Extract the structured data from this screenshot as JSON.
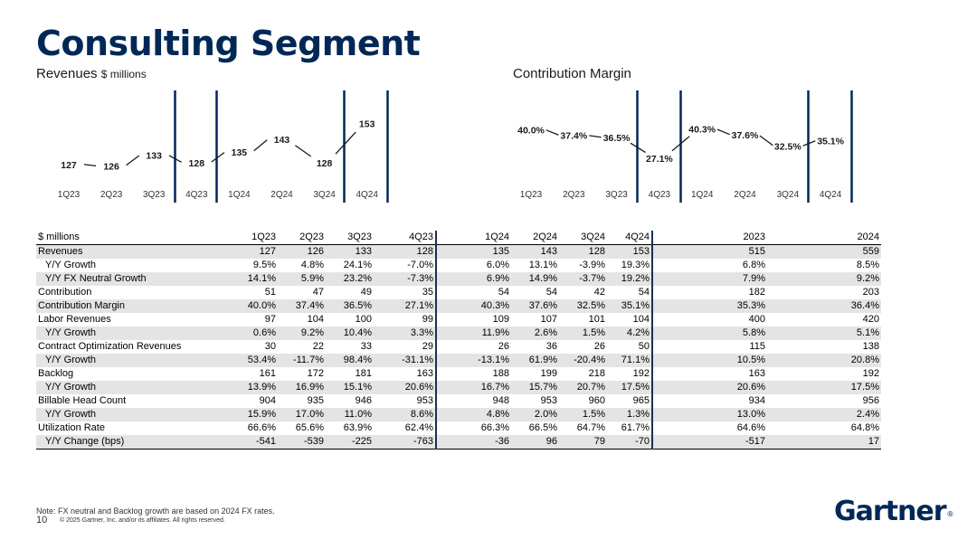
{
  "page": {
    "title": "Consulting Segment",
    "revenues_label": "Revenues",
    "revenues_unit": "$ millions",
    "margin_label": "Contribution Margin",
    "note": "Note: FX neutral and Backlog growth are based on 2024 FX rates.",
    "page_number": "10",
    "copyright": "© 2025 Gartner, Inc. and/or its affiliates. All rights reserved.",
    "logo_text": "Gartner",
    "logo_mark": "®"
  },
  "chart_data": [
    {
      "type": "line",
      "title": "Revenues $ millions",
      "categories": [
        "1Q23",
        "2Q23",
        "3Q23",
        "4Q23",
        "1Q24",
        "2Q24",
        "3Q24",
        "4Q24"
      ],
      "values": [
        127,
        126,
        133,
        128,
        135,
        143,
        128,
        153
      ],
      "labels": [
        "127",
        "126",
        "133",
        "128",
        "135",
        "143",
        "128",
        "153"
      ],
      "ylim": [
        120,
        160
      ],
      "dividers_after": [
        "3Q23",
        "4Q23",
        "3Q24",
        "4Q24"
      ],
      "color": "#002856"
    },
    {
      "type": "line",
      "title": "Contribution Margin",
      "categories": [
        "1Q23",
        "2Q23",
        "3Q23",
        "4Q23",
        "1Q24",
        "2Q24",
        "3Q24",
        "4Q24"
      ],
      "values": [
        40.0,
        37.4,
        36.5,
        27.1,
        40.3,
        37.6,
        32.5,
        35.1
      ],
      "labels": [
        "40.0%",
        "37.4%",
        "36.5%",
        "27.1%",
        "40.3%",
        "37.6%",
        "32.5%",
        "35.1%"
      ],
      "ylim": [
        25,
        43
      ],
      "dividers_after": [
        "3Q23",
        "4Q23",
        "3Q24",
        "4Q24"
      ],
      "color": "#002856"
    }
  ],
  "table": {
    "header": [
      "$ millions",
      "1Q23",
      "2Q23",
      "3Q23",
      "4Q23",
      "1Q24",
      "2Q24",
      "3Q24",
      "4Q24",
      "2023",
      "2024"
    ],
    "rows": [
      {
        "label": "Revenues",
        "indent": false,
        "values": [
          "127",
          "126",
          "133",
          "128",
          "135",
          "143",
          "128",
          "153",
          "515",
          "559"
        ]
      },
      {
        "label": "Y/Y Growth",
        "indent": true,
        "values": [
          "9.5%",
          "4.8%",
          "24.1%",
          "-7.0%",
          "6.0%",
          "13.1%",
          "-3.9%",
          "19.3%",
          "6.8%",
          "8.5%"
        ]
      },
      {
        "label": "Y/Y FX Neutral Growth",
        "indent": true,
        "values": [
          "14.1%",
          "5.9%",
          "23.2%",
          "-7.3%",
          "6.9%",
          "14.9%",
          "-3.7%",
          "19.2%",
          "7.9%",
          "9.2%"
        ]
      },
      {
        "label": "Contribution",
        "indent": false,
        "values": [
          "51",
          "47",
          "49",
          "35",
          "54",
          "54",
          "42",
          "54",
          "182",
          "203"
        ]
      },
      {
        "label": "Contribution Margin",
        "indent": false,
        "values": [
          "40.0%",
          "37.4%",
          "36.5%",
          "27.1%",
          "40.3%",
          "37.6%",
          "32.5%",
          "35.1%",
          "35.3%",
          "36.4%"
        ]
      },
      {
        "label": "Labor Revenues",
        "indent": false,
        "values": [
          "97",
          "104",
          "100",
          "99",
          "109",
          "107",
          "101",
          "104",
          "400",
          "420"
        ]
      },
      {
        "label": "Y/Y Growth",
        "indent": true,
        "values": [
          "0.6%",
          "9.2%",
          "10.4%",
          "3.3%",
          "11.9%",
          "2.6%",
          "1.5%",
          "4.2%",
          "5.8%",
          "5.1%"
        ]
      },
      {
        "label": "Contract Optimization Revenues",
        "indent": false,
        "values": [
          "30",
          "22",
          "33",
          "29",
          "26",
          "36",
          "26",
          "50",
          "115",
          "138"
        ]
      },
      {
        "label": "Y/Y Growth",
        "indent": true,
        "values": [
          "53.4%",
          "-11.7%",
          "98.4%",
          "-31.1%",
          "-13.1%",
          "61.9%",
          "-20.4%",
          "71.1%",
          "10.5%",
          "20.8%"
        ]
      },
      {
        "label": "Backlog",
        "indent": false,
        "values": [
          "161",
          "172",
          "181",
          "163",
          "188",
          "199",
          "218",
          "192",
          "163",
          "192"
        ]
      },
      {
        "label": "Y/Y Growth",
        "indent": true,
        "values": [
          "13.9%",
          "16.9%",
          "15.1%",
          "20.6%",
          "16.7%",
          "15.7%",
          "20.7%",
          "17.5%",
          "20.6%",
          "17.5%"
        ]
      },
      {
        "label": "Billable Head Count",
        "indent": false,
        "values": [
          "904",
          "935",
          "946",
          "953",
          "948",
          "953",
          "960",
          "965",
          "934",
          "956"
        ]
      },
      {
        "label": "Y/Y Growth",
        "indent": true,
        "values": [
          "15.9%",
          "17.0%",
          "11.0%",
          "8.6%",
          "4.8%",
          "2.0%",
          "1.5%",
          "1.3%",
          "13.0%",
          "2.4%"
        ]
      },
      {
        "label": "Utilization Rate",
        "indent": false,
        "values": [
          "66.6%",
          "65.6%",
          "63.9%",
          "62.4%",
          "66.3%",
          "66.5%",
          "64.7%",
          "61.7%",
          "64.6%",
          "64.8%"
        ]
      },
      {
        "label": "Y/Y Change (bps)",
        "indent": true,
        "values": [
          "-541",
          "-539",
          "-225",
          "-763",
          "-36",
          "96",
          "79",
          "-70",
          "-517",
          "17"
        ]
      }
    ]
  }
}
